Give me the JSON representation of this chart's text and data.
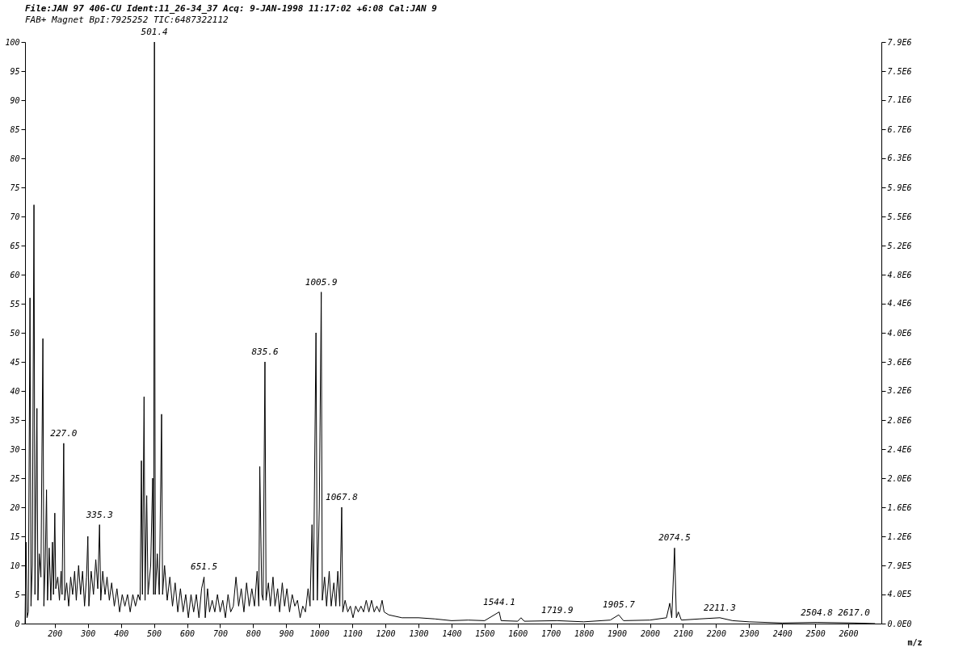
{
  "chart_data": {
    "type": "line",
    "title": "File:JAN 97 406-CU Ident:11_26-34_37 Acq: 9-JAN-1998 11:17:02 +6:08 Cal:JAN 9",
    "subtitle": "FAB+ Magnet BpI:7925252 TIC:6487322112",
    "xlabel": "m/z",
    "x": [
      110,
      113,
      116,
      120,
      125,
      128,
      132,
      137,
      140,
      146,
      149,
      153,
      158,
      164,
      167,
      171,
      175,
      178,
      183,
      188,
      193,
      196,
      200,
      203,
      209,
      214,
      219,
      222,
      227,
      230,
      236,
      242,
      248,
      254,
      260,
      265,
      272,
      278,
      284,
      290,
      296,
      300,
      303,
      310,
      317,
      324,
      330,
      335.3,
      339,
      345,
      352,
      358,
      365,
      372,
      380,
      388,
      396,
      404,
      412,
      420,
      428,
      436,
      444,
      452,
      458,
      462,
      465,
      470,
      473,
      478,
      482,
      490,
      496,
      499,
      501.4,
      504,
      510,
      516,
      523,
      526,
      532,
      540,
      548,
      556,
      564,
      572,
      580,
      588,
      596,
      604,
      612,
      620,
      628,
      636,
      644,
      651.5,
      655,
      662,
      668,
      676,
      684,
      692,
      700,
      708,
      716,
      724,
      732,
      740,
      748,
      756,
      764,
      772,
      780,
      788,
      796,
      804,
      812,
      817,
      820,
      826,
      830,
      835.6,
      839,
      846,
      852,
      860,
      866,
      874,
      880,
      888,
      895,
      902,
      910,
      918,
      926,
      934,
      942,
      950,
      958,
      966,
      972,
      978,
      982,
      990,
      994,
      1000,
      1005.9,
      1009,
      1016,
      1022,
      1030,
      1036,
      1044,
      1050,
      1056,
      1062,
      1067.8,
      1071,
      1078,
      1086,
      1094,
      1102,
      1110,
      1118,
      1126,
      1134,
      1142,
      1150,
      1158,
      1166,
      1174,
      1182,
      1190,
      1196,
      1210,
      1250,
      1300,
      1350,
      1400,
      1450,
      1500,
      1544.1,
      1550,
      1600,
      1610,
      1620,
      1719.9,
      1800,
      1880,
      1905.7,
      1920,
      2000,
      2050,
      2060,
      2066,
      2074.5,
      2080,
      2086,
      2095,
      2150,
      2211.3,
      2250,
      2300,
      2400,
      2504.8,
      2617,
      2680
    ],
    "series": [
      {
        "color": "#000000",
        "values": [
          0,
          14,
          1,
          2,
          56,
          3,
          10,
          72,
          5,
          37,
          4,
          12,
          8,
          49,
          3,
          10,
          23,
          4,
          13,
          4,
          14,
          5,
          19,
          6,
          8,
          4,
          9,
          5,
          31,
          4,
          7,
          3,
          8,
          5,
          9,
          4,
          10,
          5,
          9,
          3,
          8,
          15,
          3,
          9,
          5,
          11,
          6,
          17,
          4,
          9,
          5,
          8,
          4,
          7,
          3,
          6,
          2,
          5,
          3,
          5,
          2,
          5,
          3,
          5,
          4,
          28,
          5,
          39,
          4,
          22,
          5,
          10,
          25,
          5,
          100,
          5,
          12,
          5,
          36,
          5,
          10,
          4,
          8,
          3,
          7,
          2,
          6,
          2,
          5,
          1,
          5,
          2,
          5,
          1,
          6,
          8,
          1,
          6,
          2,
          4,
          2,
          5,
          2,
          4,
          1,
          5,
          2,
          3,
          8,
          3,
          6,
          2,
          7,
          3,
          6,
          3,
          9,
          3,
          27,
          5,
          4,
          45,
          4,
          7,
          3,
          8,
          3,
          6,
          2,
          7,
          3,
          6,
          2,
          5,
          3,
          4,
          1,
          3,
          2,
          6,
          3,
          17,
          4,
          50,
          4,
          20,
          57,
          4,
          8,
          3,
          9,
          3,
          7,
          3,
          9,
          3,
          20,
          2,
          4,
          2,
          3,
          1,
          3,
          2,
          3,
          2,
          4,
          2,
          4,
          2,
          3,
          2,
          4,
          2,
          1.5,
          1,
          1,
          0.8,
          0.5,
          0.6,
          0.5,
          2,
          0.5,
          0.4,
          1,
          0.4,
          0.5,
          0.3,
          0.6,
          1.5,
          0.5,
          0.6,
          1,
          3.5,
          1,
          13,
          1,
          2,
          0.6,
          0.8,
          1,
          0.5,
          0.3,
          0.1,
          0.2,
          0.1,
          0
        ]
      }
    ],
    "xlim": [
      110,
      2700
    ],
    "xticks": [
      200,
      300,
      400,
      500,
      600,
      700,
      800,
      900,
      1000,
      1100,
      1200,
      1300,
      1400,
      1500,
      1600,
      1700,
      1800,
      1900,
      2000,
      2100,
      2200,
      2300,
      2400,
      2500,
      2600
    ],
    "ylim": [
      0,
      100
    ],
    "yticks": [
      0,
      5,
      10,
      15,
      20,
      25,
      30,
      35,
      40,
      45,
      50,
      55,
      60,
      65,
      70,
      75,
      80,
      85,
      90,
      95,
      100
    ],
    "y2lim": [
      0,
      7925252
    ],
    "y2ticks": [
      {
        "value": 0,
        "label": "0.0E0"
      },
      {
        "value": 396263,
        "label": "4.0E5"
      },
      {
        "value": 792525,
        "label": "7.9E5"
      },
      {
        "value": 1188788,
        "label": "1.2E6"
      },
      {
        "value": 1585050,
        "label": "1.6E6"
      },
      {
        "value": 1981313,
        "label": "2.0E6"
      },
      {
        "value": 2377576,
        "label": "2.4E6"
      },
      {
        "value": 2773838,
        "label": "2.8E6"
      },
      {
        "value": 3170101,
        "label": "3.2E6"
      },
      {
        "value": 3566363,
        "label": "3.6E6"
      },
      {
        "value": 3962626,
        "label": "4.0E6"
      },
      {
        "value": 4358889,
        "label": "4.4E6"
      },
      {
        "value": 4755151,
        "label": "4.8E6"
      },
      {
        "value": 5151414,
        "label": "5.2E6"
      },
      {
        "value": 5547676,
        "label": "5.5E6"
      },
      {
        "value": 5943939,
        "label": "5.9E6"
      },
      {
        "value": 6340202,
        "label": "6.3E6"
      },
      {
        "value": 6736464,
        "label": "6.7E6"
      },
      {
        "value": 7132727,
        "label": "7.1E6"
      },
      {
        "value": 7528989,
        "label": "7.5E6"
      },
      {
        "value": 7925252,
        "label": "7.9E6"
      }
    ],
    "annotations": [
      {
        "text": "227.0",
        "x": 227,
        "y": 31
      },
      {
        "text": "335.3",
        "x": 335.3,
        "y": 17
      },
      {
        "text": "501.4",
        "x": 501.4,
        "y": 100
      },
      {
        "text": "651.5",
        "x": 651.5,
        "y": 8
      },
      {
        "text": "835.6",
        "x": 835.6,
        "y": 45
      },
      {
        "text": "1005.9",
        "x": 1005.9,
        "y": 57
      },
      {
        "text": "1067.8",
        "x": 1067.8,
        "y": 20
      },
      {
        "text": "1544.1",
        "x": 1544.1,
        "y": 2
      },
      {
        "text": "1719.9",
        "x": 1719.9,
        "y": 0.5
      },
      {
        "text": "1905.7",
        "x": 1905.7,
        "y": 1.5
      },
      {
        "text": "2074.5",
        "x": 2074.5,
        "y": 13
      },
      {
        "text": "2211.3",
        "x": 2211.3,
        "y": 1
      },
      {
        "text": "2504.8",
        "x": 2504.8,
        "y": 0.2
      },
      {
        "text": "2617.0",
        "x": 2617,
        "y": 0.1
      }
    ],
    "grid": false,
    "line_style": "solid"
  }
}
